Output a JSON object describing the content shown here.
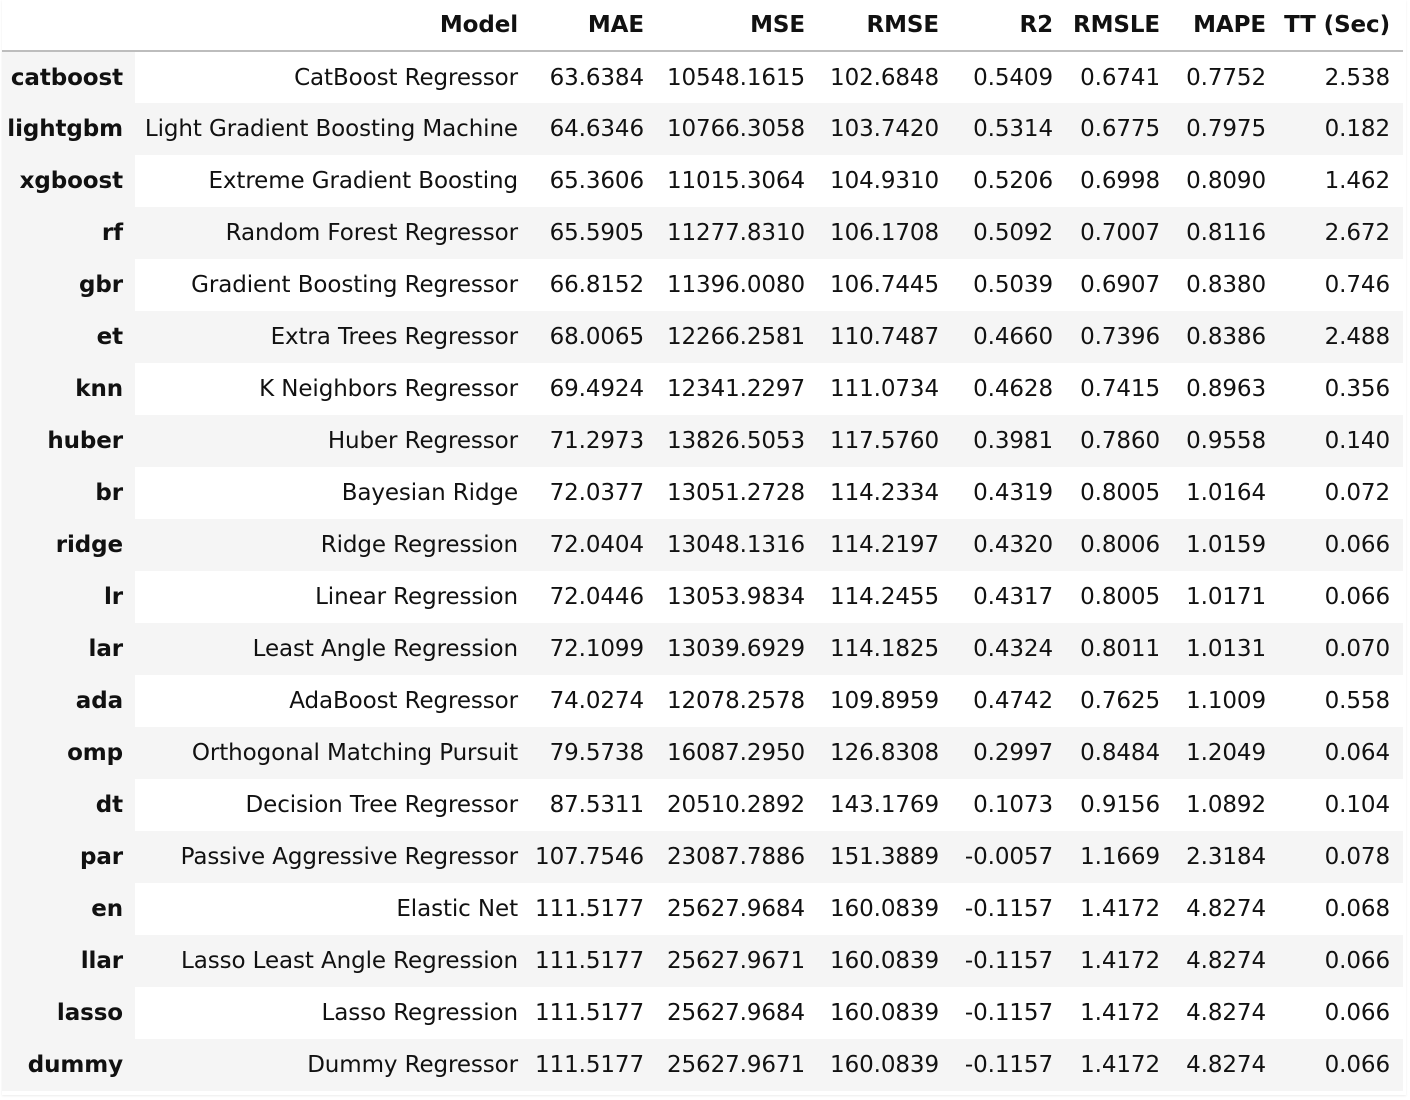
{
  "table": {
    "columns": [
      "",
      "Model",
      "MAE",
      "MSE",
      "RMSE",
      "R2",
      "RMSLE",
      "MAPE",
      "TT (Sec)"
    ],
    "rows": [
      {
        "id": "catboost",
        "model": "CatBoost Regressor",
        "mae": "63.6384",
        "mse": "10548.1615",
        "rmse": "102.6848",
        "r2": "0.5409",
        "rmsle": "0.6741",
        "mape": "0.7752",
        "tt": "2.538"
      },
      {
        "id": "lightgbm",
        "model": "Light Gradient Boosting Machine",
        "mae": "64.6346",
        "mse": "10766.3058",
        "rmse": "103.7420",
        "r2": "0.5314",
        "rmsle": "0.6775",
        "mape": "0.7975",
        "tt": "0.182"
      },
      {
        "id": "xgboost",
        "model": "Extreme Gradient Boosting",
        "mae": "65.3606",
        "mse": "11015.3064",
        "rmse": "104.9310",
        "r2": "0.5206",
        "rmsle": "0.6998",
        "mape": "0.8090",
        "tt": "1.462"
      },
      {
        "id": "rf",
        "model": "Random Forest Regressor",
        "mae": "65.5905",
        "mse": "11277.8310",
        "rmse": "106.1708",
        "r2": "0.5092",
        "rmsle": "0.7007",
        "mape": "0.8116",
        "tt": "2.672"
      },
      {
        "id": "gbr",
        "model": "Gradient Boosting Regressor",
        "mae": "66.8152",
        "mse": "11396.0080",
        "rmse": "106.7445",
        "r2": "0.5039",
        "rmsle": "0.6907",
        "mape": "0.8380",
        "tt": "0.746"
      },
      {
        "id": "et",
        "model": "Extra Trees Regressor",
        "mae": "68.0065",
        "mse": "12266.2581",
        "rmse": "110.7487",
        "r2": "0.4660",
        "rmsle": "0.7396",
        "mape": "0.8386",
        "tt": "2.488"
      },
      {
        "id": "knn",
        "model": "K Neighbors Regressor",
        "mae": "69.4924",
        "mse": "12341.2297",
        "rmse": "111.0734",
        "r2": "0.4628",
        "rmsle": "0.7415",
        "mape": "0.8963",
        "tt": "0.356"
      },
      {
        "id": "huber",
        "model": "Huber Regressor",
        "mae": "71.2973",
        "mse": "13826.5053",
        "rmse": "117.5760",
        "r2": "0.3981",
        "rmsle": "0.7860",
        "mape": "0.9558",
        "tt": "0.140"
      },
      {
        "id": "br",
        "model": "Bayesian Ridge",
        "mae": "72.0377",
        "mse": "13051.2728",
        "rmse": "114.2334",
        "r2": "0.4319",
        "rmsle": "0.8005",
        "mape": "1.0164",
        "tt": "0.072"
      },
      {
        "id": "ridge",
        "model": "Ridge Regression",
        "mae": "72.0404",
        "mse": "13048.1316",
        "rmse": "114.2197",
        "r2": "0.4320",
        "rmsle": "0.8006",
        "mape": "1.0159",
        "tt": "0.066"
      },
      {
        "id": "lr",
        "model": "Linear Regression",
        "mae": "72.0446",
        "mse": "13053.9834",
        "rmse": "114.2455",
        "r2": "0.4317",
        "rmsle": "0.8005",
        "mape": "1.0171",
        "tt": "0.066"
      },
      {
        "id": "lar",
        "model": "Least Angle Regression",
        "mae": "72.1099",
        "mse": "13039.6929",
        "rmse": "114.1825",
        "r2": "0.4324",
        "rmsle": "0.8011",
        "mape": "1.0131",
        "tt": "0.070"
      },
      {
        "id": "ada",
        "model": "AdaBoost Regressor",
        "mae": "74.0274",
        "mse": "12078.2578",
        "rmse": "109.8959",
        "r2": "0.4742",
        "rmsle": "0.7625",
        "mape": "1.1009",
        "tt": "0.558"
      },
      {
        "id": "omp",
        "model": "Orthogonal Matching Pursuit",
        "mae": "79.5738",
        "mse": "16087.2950",
        "rmse": "126.8308",
        "r2": "0.2997",
        "rmsle": "0.8484",
        "mape": "1.2049",
        "tt": "0.064"
      },
      {
        "id": "dt",
        "model": "Decision Tree Regressor",
        "mae": "87.5311",
        "mse": "20510.2892",
        "rmse": "143.1769",
        "r2": "0.1073",
        "rmsle": "0.9156",
        "mape": "1.0892",
        "tt": "0.104"
      },
      {
        "id": "par",
        "model": "Passive Aggressive Regressor",
        "mae": "107.7546",
        "mse": "23087.7886",
        "rmse": "151.3889",
        "r2": "-0.0057",
        "rmsle": "1.1669",
        "mape": "2.3184",
        "tt": "0.078"
      },
      {
        "id": "en",
        "model": "Elastic Net",
        "mae": "111.5177",
        "mse": "25627.9684",
        "rmse": "160.0839",
        "r2": "-0.1157",
        "rmsle": "1.4172",
        "mape": "4.8274",
        "tt": "0.068"
      },
      {
        "id": "llar",
        "model": "Lasso Least Angle Regression",
        "mae": "111.5177",
        "mse": "25627.9671",
        "rmse": "160.0839",
        "r2": "-0.1157",
        "rmsle": "1.4172",
        "mape": "4.8274",
        "tt": "0.066"
      },
      {
        "id": "lasso",
        "model": "Lasso Regression",
        "mae": "111.5177",
        "mse": "25627.9684",
        "rmse": "160.0839",
        "r2": "-0.1157",
        "rmsle": "1.4172",
        "mape": "4.8274",
        "tt": "0.066"
      },
      {
        "id": "dummy",
        "model": "Dummy Regressor",
        "mae": "111.5177",
        "mse": "25627.9671",
        "rmse": "160.0839",
        "r2": "-0.1157",
        "rmsle": "1.4172",
        "mape": "4.8274",
        "tt": "0.066"
      }
    ]
  }
}
